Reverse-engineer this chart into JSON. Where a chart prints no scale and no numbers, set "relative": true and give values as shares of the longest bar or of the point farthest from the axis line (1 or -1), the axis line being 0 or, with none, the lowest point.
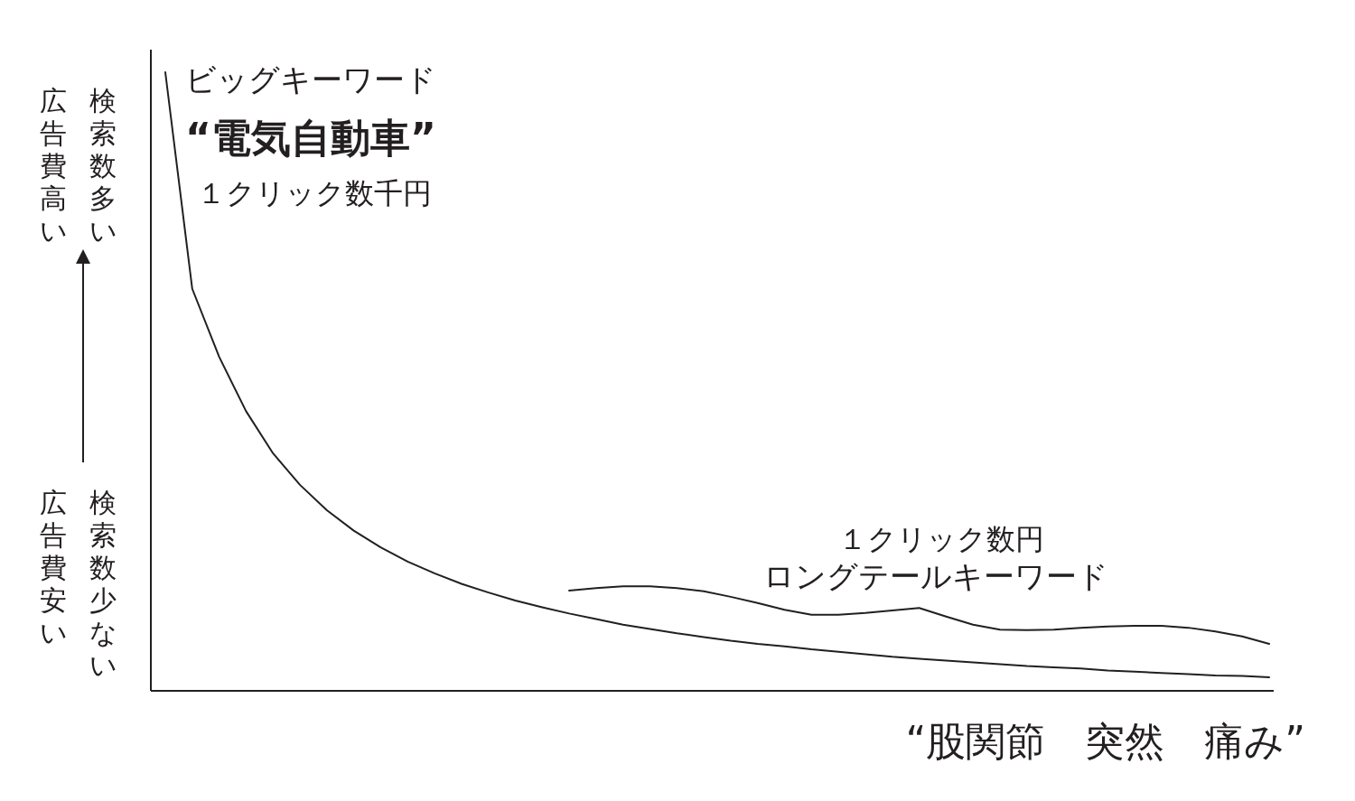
{
  "chart_data": {
    "type": "line",
    "relative": true,
    "categories": [
      null,
      null,
      null,
      null,
      null,
      null,
      null,
      null,
      null,
      null,
      null,
      null,
      null,
      null,
      null,
      null,
      null,
      null,
      null,
      null,
      null,
      null,
      null,
      null,
      null,
      null,
      null,
      null,
      null,
      null,
      null,
      null,
      null,
      null,
      null,
      null,
      null,
      null,
      null,
      null,
      null,
      null
    ],
    "series": [
      {
        "color": "#231f20",
        "values": [
          1.0,
          0.65,
          0.54,
          0.452,
          0.384,
          0.333,
          0.292,
          0.259,
          0.232,
          0.209,
          0.19,
          0.173,
          0.159,
          0.146,
          0.135,
          0.125,
          0.116,
          0.107,
          0.1,
          0.093,
          0.087,
          0.081,
          0.076,
          0.072,
          0.067,
          0.063,
          0.059,
          0.055,
          0.052,
          0.049,
          0.046,
          0.043,
          0.04,
          0.038,
          0.036,
          0.033,
          0.031,
          0.029,
          0.027,
          0.025,
          0.024,
          0.022
        ]
      },
      {
        "color": "#231f20",
        "values": [
          null,
          null,
          null,
          null,
          null,
          null,
          null,
          null,
          null,
          null,
          null,
          null,
          null,
          null,
          null,
          0.162,
          0.166,
          0.169,
          0.169,
          0.166,
          0.161,
          0.152,
          0.142,
          0.131,
          0.123,
          0.123,
          0.126,
          0.13,
          0.134,
          0.12,
          0.107,
          0.099,
          0.098,
          0.099,
          0.102,
          0.104,
          0.105,
          0.105,
          0.102,
          0.096,
          0.088,
          0.076
        ]
      }
    ],
    "xlabel": "“股関節　突然　痛み”",
    "annotations": [
      "ビッグキーワード",
      "“電気自動車”",
      "１クリック数千円",
      "１クリック数円",
      "ロングテールキーワード",
      "検索数多い",
      "広告費高い",
      "検索数少ない",
      "広告費安い"
    ]
  }
}
